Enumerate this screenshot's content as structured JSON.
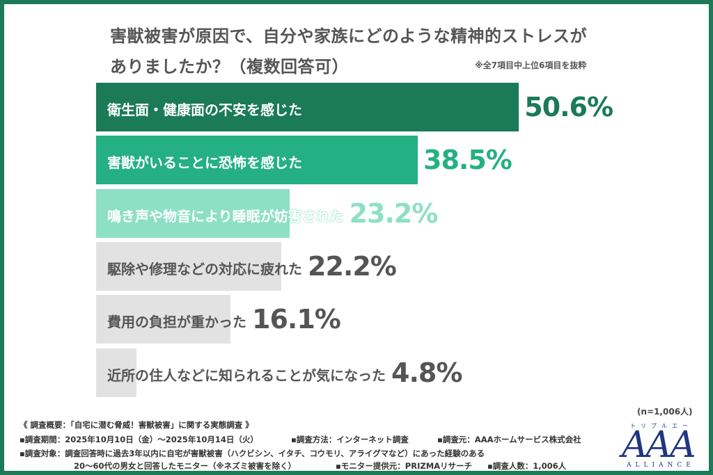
{
  "title_line1": "害獣被害が原因で、自分や家族にどのような精神的ストレスが",
  "title_line2": "ありましたか？（複数回答可）",
  "note": "※全7項目中上位6項目を抜粋",
  "n_label": "(n=1,006人)",
  "chart_data": {
    "type": "bar",
    "orientation": "horizontal",
    "title": "害獣被害が原因で、自分や家族にどのような精神的ストレスがありましたか？（複数回答可）",
    "categories": [
      "衛生面・健康面の不安を感じた",
      "害獣がいることに恐怖を感じた",
      "鳴き声や物音により睡眠が妨害された",
      "駆除や修理などの対応に疲れた",
      "費用の負担が重かった",
      "近所の住人などに知られることが気になった"
    ],
    "values": [
      50.6,
      38.5,
      23.2,
      22.2,
      16.1,
      4.8
    ],
    "value_labels": [
      "50.6%",
      "38.5%",
      "23.2%",
      "22.2%",
      "16.1%",
      "4.8%"
    ],
    "unit": "%",
    "bar_colors": [
      "#1b7a58",
      "#24b083",
      "#8ee0c4",
      "#e2e2e2",
      "#e2e2e2",
      "#e2e2e2"
    ],
    "label_colors": [
      "#1b7a58",
      "#24b083",
      "#8ee0c4",
      "#555555",
      "#555555",
      "#555555"
    ],
    "grid": false
  },
  "footer": {
    "overview": "《 調査概要：「自宅に潜む脅威！害獣被害」に関する実態調査 》",
    "period": "▪調査期間：2025年10月10日（金）～2025年10月14日（火）",
    "method": "▪調査方法：インターネット調査",
    "source": "▪調査元：AAAホームサービス株式会社",
    "target": "▪調査対象：調査回答時に過去3年以内に自宅が害獣被害（ハクビシン、イタチ、コウモリ、アライグマなど）にあった経験のある",
    "target2": "20～60代の男女と回答したモニター（※ネズミ被害を除く）",
    "provider": "▪モニター提供元：PRIZMAリサーチ",
    "count": "▪調査人数：1,006人"
  },
  "logo": {
    "kana": "トリプルエー",
    "main": "AAA",
    "sub": "ALLIANCE"
  }
}
